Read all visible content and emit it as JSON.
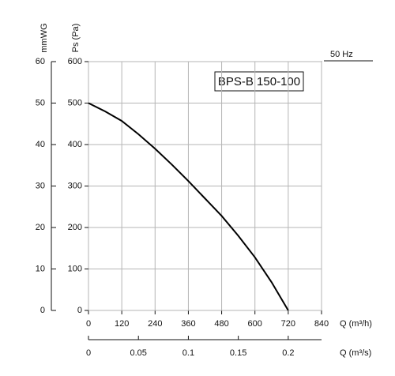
{
  "chart_data": {
    "type": "line",
    "model_label": "BPS-B 150-100",
    "frequency_label": "50 Hz",
    "xlabel": "Q (m³/h)",
    "ylabel": "Ps (Pa)",
    "y2label": "mmWG",
    "x2label": "Q (m³/s)",
    "x": [
      0,
      60,
      120,
      180,
      240,
      300,
      360,
      420,
      480,
      540,
      600,
      660,
      720
    ],
    "series": [
      {
        "name": "BPS-B 150-100",
        "color": "#000000",
        "values": [
          500,
          480,
          457,
          425,
          390,
          352,
          312,
          270,
          228,
          180,
          128,
          68,
          0
        ]
      }
    ],
    "xlim": [
      0,
      840
    ],
    "xticks": [
      0,
      120,
      240,
      360,
      480,
      600,
      720,
      840
    ],
    "ylim": [
      0,
      600
    ],
    "yticks": [
      0,
      100,
      200,
      300,
      400,
      500,
      600
    ],
    "y2lim": [
      0,
      60
    ],
    "y2ticks": [
      0,
      10,
      20,
      30,
      40,
      50,
      60
    ],
    "x2lim": [
      0,
      0.23333
    ],
    "x2ticks": [
      0,
      0.05,
      0.1,
      0.15,
      0.2
    ],
    "grid": true
  }
}
